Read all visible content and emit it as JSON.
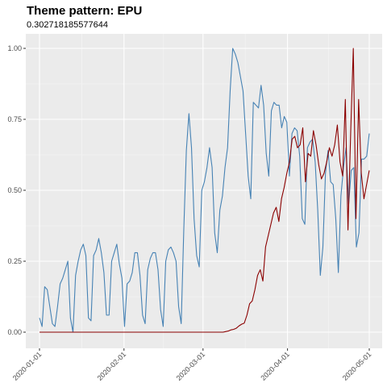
{
  "chart_data": {
    "type": "line",
    "title": "Theme pattern: EPU",
    "subtitle": "0.302718185577644",
    "xlabel": "",
    "ylabel": "",
    "x_start": "2020-01-01",
    "x_end": "2020-05-01",
    "ylim": [
      0,
      1
    ],
    "grid": true,
    "legend": "none",
    "x_ticks": [
      "2020-01-01",
      "2020-02-01",
      "2020-03-01",
      "2020-04-01",
      "2020-05-01"
    ],
    "y_ticks": [
      "0.00",
      "0.25",
      "0.50",
      "0.75",
      "1.00"
    ],
    "y_tick_values": [
      0,
      0.25,
      0.5,
      0.75,
      1
    ],
    "panel_color": "#ebebeb",
    "series": [
      {
        "color": "#4682b4",
        "values": [
          0.05,
          0.02,
          0.16,
          0.15,
          0.09,
          0.03,
          0.02,
          0.09,
          0.17,
          0.19,
          0.22,
          0.25,
          0.05,
          0.0,
          0.2,
          0.25,
          0.29,
          0.31,
          0.27,
          0.05,
          0.04,
          0.27,
          0.29,
          0.33,
          0.28,
          0.21,
          0.06,
          0.06,
          0.25,
          0.28,
          0.31,
          0.24,
          0.19,
          0.02,
          0.17,
          0.18,
          0.21,
          0.28,
          0.28,
          0.2,
          0.06,
          0.03,
          0.22,
          0.26,
          0.28,
          0.28,
          0.22,
          0.08,
          0.02,
          0.25,
          0.29,
          0.3,
          0.28,
          0.25,
          0.09,
          0.03,
          0.36,
          0.64,
          0.77,
          0.65,
          0.4,
          0.27,
          0.23,
          0.5,
          0.53,
          0.58,
          0.65,
          0.58,
          0.35,
          0.28,
          0.43,
          0.48,
          0.58,
          0.65,
          0.85,
          1.0,
          0.98,
          0.95,
          0.9,
          0.85,
          0.7,
          0.55,
          0.47,
          0.81,
          0.8,
          0.79,
          0.87,
          0.8,
          0.63,
          0.55,
          0.78,
          0.81,
          0.8,
          0.8,
          0.72,
          0.76,
          0.74,
          0.55,
          0.7,
          0.72,
          0.71,
          0.62,
          0.4,
          0.38,
          0.65,
          0.67,
          0.68,
          0.6,
          0.43,
          0.2,
          0.3,
          0.56,
          0.64,
          0.53,
          0.52,
          0.4,
          0.21,
          0.48,
          0.58,
          0.65,
          0.45,
          0.57,
          0.58,
          0.3,
          0.35,
          0.61,
          0.61,
          0.62,
          0.7
        ]
      },
      {
        "color": "#8b0000",
        "values": [
          0,
          0,
          0,
          0,
          0,
          0,
          0,
          0,
          0,
          0,
          0,
          0,
          0,
          0,
          0,
          0,
          0,
          0,
          0,
          0,
          0,
          0,
          0,
          0,
          0,
          0,
          0,
          0,
          0,
          0,
          0,
          0,
          0,
          0,
          0,
          0,
          0,
          0,
          0,
          0,
          0,
          0,
          0,
          0,
          0,
          0,
          0,
          0,
          0,
          0,
          0,
          0,
          0,
          0,
          0,
          0,
          0,
          0,
          0,
          0,
          0,
          0,
          0,
          0,
          0,
          0,
          0,
          0,
          0,
          0,
          0.002,
          0.004,
          0.008,
          0.01,
          0.014,
          0.022,
          0.028,
          0.032,
          0.06,
          0.1,
          0.11,
          0.15,
          0.2,
          0.22,
          0.18,
          0.3,
          0.34,
          0.38,
          0.42,
          0.44,
          0.39,
          0.47,
          0.51,
          0.56,
          0.6,
          0.68,
          0.69,
          0.65,
          0.66,
          0.72,
          0.53,
          0.63,
          0.62,
          0.71,
          0.66,
          0.59,
          0.54,
          0.56,
          0.6,
          0.65,
          0.62,
          0.66,
          0.73,
          0.6,
          0.55,
          0.82,
          0.36,
          0.7,
          1.0,
          0.4,
          0.82,
          0.56,
          0.47,
          0.52,
          0.57
        ]
      }
    ]
  }
}
